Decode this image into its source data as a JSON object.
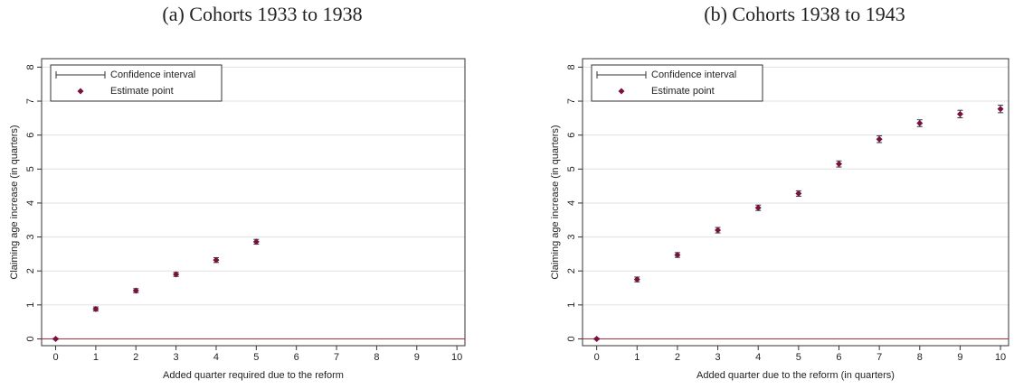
{
  "chart_data": [
    {
      "type": "scatter",
      "title": "(a) Cohorts 1933 to 1938",
      "x_label": "Added quarter required due to the reform",
      "y_label": "Claiming age increase (in quarters)",
      "error_bar_name": "Confidence interval",
      "error_bar_color": "#333333",
      "series": [
        {
          "name": "Estimate point",
          "color": "#7a1040",
          "x": [
            0,
            1,
            2,
            3,
            4,
            5
          ],
          "values": [
            0,
            0.88,
            1.42,
            1.9,
            2.32,
            2.86
          ],
          "errors": [
            0.02,
            0.06,
            0.06,
            0.06,
            0.07,
            0.07
          ]
        }
      ],
      "xlim": [
        -0.35,
        10.2
      ],
      "ylim": [
        -0.2,
        8.25
      ],
      "xticks": [
        0,
        1,
        2,
        3,
        4,
        5,
        6,
        7,
        8,
        9,
        10
      ],
      "yticks": [
        0,
        1,
        2,
        3,
        4,
        5,
        6,
        7,
        8
      ],
      "grid": true,
      "reference_line": 0,
      "reference_color": "#b03030",
      "legend": "upper left"
    },
    {
      "type": "scatter",
      "title": "(b) Cohorts 1938 to 1943",
      "x_label": "Added quarter due to the reform (in quarters)",
      "y_label": "Claiming age increase (in quarters)",
      "error_bar_name": "Confidence interval",
      "error_bar_color": "#333333",
      "series": [
        {
          "name": "Estimate point",
          "color": "#7a1040",
          "x": [
            0,
            1,
            2,
            3,
            4,
            5,
            6,
            7,
            8,
            9,
            10
          ],
          "values": [
            0,
            1.75,
            2.47,
            3.2,
            3.86,
            4.28,
            5.15,
            5.88,
            6.35,
            6.62,
            6.77
          ],
          "errors": [
            0.02,
            0.07,
            0.07,
            0.08,
            0.08,
            0.08,
            0.09,
            0.1,
            0.1,
            0.11,
            0.11
          ]
        }
      ],
      "xlim": [
        -0.35,
        10.2
      ],
      "ylim": [
        -0.2,
        8.25
      ],
      "xticks": [
        0,
        1,
        2,
        3,
        4,
        5,
        6,
        7,
        8,
        9,
        10
      ],
      "yticks": [
        0,
        1,
        2,
        3,
        4,
        5,
        6,
        7,
        8
      ],
      "grid": true,
      "reference_line": 0,
      "reference_color": "#b03030",
      "legend": "upper left"
    }
  ]
}
